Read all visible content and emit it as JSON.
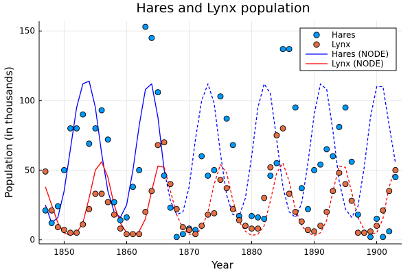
{
  "chart_data": {
    "type": "scatter",
    "title": "Hares and Lynx population",
    "xlabel": "Year",
    "ylabel": "Population (in thousands)",
    "xlim": [
      1846,
      1904
    ],
    "ylim": [
      -3,
      157
    ],
    "x_ticks": [
      1850,
      1860,
      1870,
      1880,
      1890,
      1900
    ],
    "y_ticks": [
      0,
      50,
      100,
      150
    ],
    "grid": true,
    "legend_position": "top-right",
    "legend": [
      "Hares",
      "Lynx",
      "Hares (NODE)",
      "Lynx (NODE)"
    ],
    "x": [
      1847,
      1848,
      1849,
      1850,
      1851,
      1852,
      1853,
      1854,
      1855,
      1856,
      1857,
      1858,
      1859,
      1860,
      1861,
      1862,
      1863,
      1864,
      1865,
      1866,
      1867,
      1868,
      1869,
      1870,
      1871,
      1872,
      1873,
      1874,
      1875,
      1876,
      1877,
      1878,
      1879,
      1880,
      1881,
      1882,
      1883,
      1884,
      1885,
      1886,
      1887,
      1888,
      1889,
      1890,
      1891,
      1892,
      1893,
      1894,
      1895,
      1896,
      1897,
      1898,
      1899,
      1900,
      1901,
      1902,
      1903
    ],
    "series": [
      {
        "name": "Hares",
        "kind": "scatter",
        "color": "#009AFA",
        "values": [
          21,
          12,
          24,
          50,
          80,
          80,
          90,
          69,
          80,
          93,
          72,
          27,
          14,
          16,
          38,
          50,
          153,
          145,
          106,
          46,
          23,
          2,
          4,
          8,
          7,
          60,
          46,
          50,
          103,
          87,
          68,
          17,
          10,
          17,
          16,
          15,
          46,
          55,
          137,
          137,
          95,
          37,
          22,
          50,
          54,
          65,
          60,
          81,
          95,
          56,
          18,
          5,
          2,
          15,
          2,
          6,
          45
        ]
      },
      {
        "name": "Lynx",
        "kind": "scatter",
        "color": "#E26F46",
        "values": [
          49,
          21,
          9,
          7,
          5,
          5,
          11,
          22,
          33,
          33,
          27,
          18,
          8,
          4,
          4,
          4,
          20,
          35,
          68,
          70,
          40,
          22,
          9,
          7,
          4,
          10,
          18,
          19,
          43,
          37,
          22,
          14,
          10,
          8,
          8,
          30,
          52,
          75,
          80,
          33,
          20,
          13,
          7,
          6,
          10,
          20,
          35,
          48,
          40,
          28,
          5,
          5,
          6,
          10,
          21,
          35,
          50
        ]
      },
      {
        "name": "Hares (NODE)",
        "kind": "line",
        "color": "#0000FF",
        "fit_end": 1866,
        "x": [
          1847,
          1848,
          1849,
          1850,
          1851,
          1852,
          1853,
          1854,
          1855,
          1856,
          1857,
          1858,
          1859,
          1860,
          1861,
          1862,
          1863,
          1864,
          1865,
          1866,
          1867,
          1868,
          1869,
          1870,
          1871,
          1872,
          1873,
          1874,
          1875,
          1876,
          1877,
          1878,
          1879,
          1880,
          1881,
          1882,
          1883,
          1884,
          1885,
          1886,
          1887,
          1888,
          1889,
          1890,
          1891,
          1892,
          1893,
          1894,
          1895,
          1896,
          1897,
          1898,
          1899,
          1900,
          1901,
          1902,
          1903
        ],
        "values": [
          25,
          12,
          16,
          35,
          65,
          95,
          112,
          114,
          95,
          62,
          35,
          20,
          16,
          25,
          50,
          82,
          108,
          112,
          88,
          50,
          28,
          18,
          20,
          38,
          72,
          100,
          112,
          98,
          62,
          32,
          18,
          17,
          30,
          60,
          95,
          112,
          105,
          72,
          38,
          20,
          16,
          26,
          55,
          90,
          112,
          108,
          78,
          42,
          22,
          16,
          24,
          52,
          88,
          110,
          110,
          82,
          55
        ]
      },
      {
        "name": "Lynx (NODE)",
        "kind": "line",
        "color": "#FF0000",
        "fit_end": 1866,
        "x": [
          1847,
          1848,
          1849,
          1850,
          1851,
          1852,
          1853,
          1854,
          1855,
          1856,
          1857,
          1858,
          1859,
          1860,
          1861,
          1862,
          1863,
          1864,
          1865,
          1866,
          1867,
          1868,
          1869,
          1870,
          1871,
          1872,
          1873,
          1874,
          1875,
          1876,
          1877,
          1878,
          1879,
          1880,
          1881,
          1882,
          1883,
          1884,
          1885,
          1886,
          1887,
          1888,
          1889,
          1890,
          1891,
          1892,
          1893,
          1894,
          1895,
          1896,
          1897,
          1898,
          1899,
          1900,
          1901,
          1902,
          1903
        ],
        "values": [
          38,
          25,
          12,
          5,
          3,
          5,
          12,
          30,
          50,
          56,
          45,
          25,
          12,
          5,
          3,
          6,
          15,
          35,
          53,
          52,
          35,
          18,
          8,
          4,
          4,
          8,
          20,
          40,
          54,
          48,
          28,
          13,
          6,
          3,
          4,
          10,
          28,
          48,
          55,
          42,
          22,
          10,
          5,
          3,
          5,
          14,
          35,
          53,
          52,
          34,
          16,
          7,
          4,
          5,
          15,
          38,
          52
        ]
      }
    ]
  }
}
